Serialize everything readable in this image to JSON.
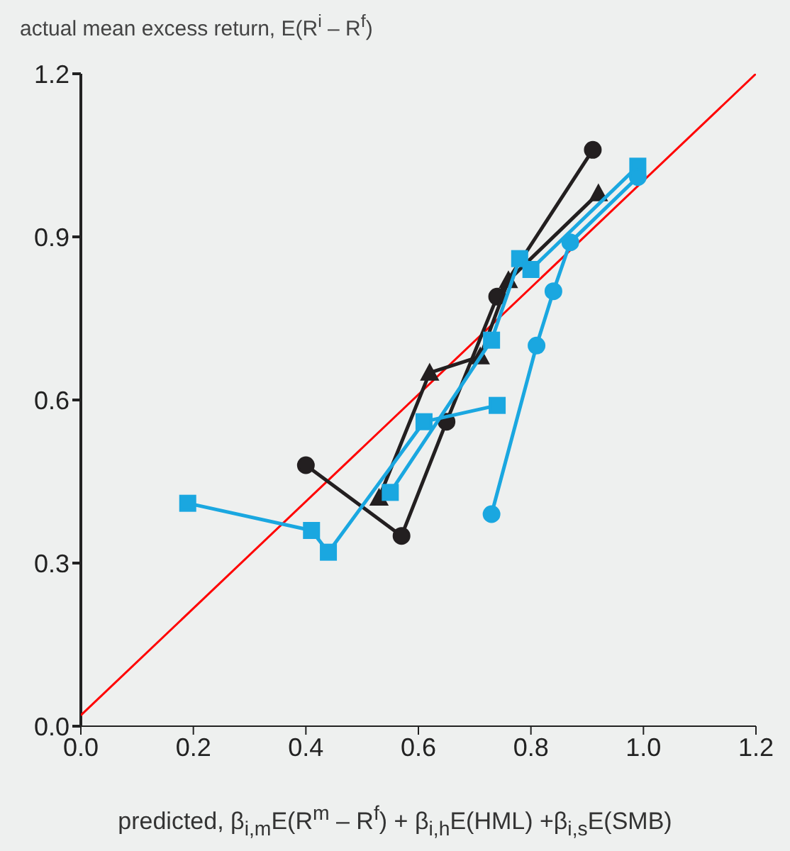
{
  "chart_data": {
    "type": "line",
    "ylabel": "actual mean excess return, E(R$^{i}$ – R$^{f}$)",
    "xlabel": "predicted, β$_{i,m}$E(R$^{m}$ – R$^{f}$) + β$_{i,h}$E(HML) +β$_{i,s}$E(SMB)",
    "xlim": [
      0,
      1.2
    ],
    "ylim": [
      0,
      1.2
    ],
    "xticks": [
      {
        "value": 0,
        "label": "0.0"
      },
      0.2,
      0.4,
      0.6,
      0.8,
      {
        "value": 1,
        "label": "1.0"
      },
      1.2
    ],
    "yticks": [
      {
        "value": 0,
        "label": "0.0"
      },
      0.3,
      0.6,
      0.9,
      1.2
    ],
    "series": [
      {
        "color": "#ff0000",
        "marker": "none",
        "x": [
          0,
          1.2
        ],
        "values": [
          0.02,
          1.2
        ]
      },
      {
        "color": "#231f20",
        "marker": "circle",
        "x": [
          0.4,
          0.57,
          0.65,
          0.74,
          0.91
        ],
        "values": [
          0.48,
          0.35,
          0.56,
          0.79,
          1.06
        ]
      },
      {
        "color": "#231f20",
        "marker": "triangle",
        "x": [
          0.53,
          0.62,
          0.71,
          0.76,
          0.92
        ],
        "values": [
          0.42,
          0.65,
          0.68,
          0.82,
          0.98
        ]
      },
      {
        "color": "#1aa7e0",
        "marker": "square",
        "x": [
          0.19,
          0.41,
          0.44,
          0.61,
          0.74
        ],
        "values": [
          0.41,
          0.36,
          0.32,
          0.56,
          0.59
        ]
      },
      {
        "color": "#1aa7e0",
        "marker": "square",
        "x": [
          0.55,
          0.73,
          0.78,
          0.8,
          0.99
        ],
        "values": [
          0.43,
          0.71,
          0.86,
          0.84,
          1.03
        ]
      },
      {
        "color": "#1aa7e0",
        "marker": "circle",
        "x": [
          0.73,
          0.81,
          0.84,
          0.87,
          0.99
        ],
        "values": [
          0.39,
          0.7,
          0.8,
          0.89,
          1.01
        ]
      }
    ]
  }
}
